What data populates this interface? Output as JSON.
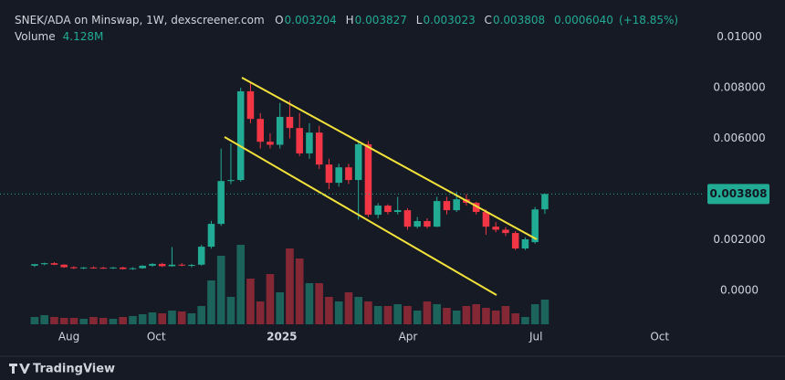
{
  "chart_data": {
    "type": "candlestick",
    "title": "SNEK/ADA on Minswap, 1W, dexscreener.com",
    "ohlc_keys": [
      "O",
      "H",
      "L",
      "C"
    ],
    "change": {
      "value": 0.000604,
      "label": "0.0006040"
    },
    "change_percent": {
      "value": 18.85,
      "label": "(+18.85%)"
    },
    "volume_name": "Volume",
    "volume_last_label": "4.128M",
    "watermark": "TradingView",
    "up_color": "#22ab94",
    "down_color": "#f23645",
    "x": [
      0,
      1,
      2,
      3,
      4,
      5,
      6,
      7,
      8,
      9,
      10,
      11,
      12,
      13,
      14,
      15,
      16,
      17,
      18,
      19,
      20,
      21,
      22,
      23,
      24,
      25,
      26,
      27,
      28,
      29,
      30,
      31,
      32,
      33,
      34,
      35,
      36,
      37,
      38,
      39,
      40,
      41,
      42,
      43,
      44,
      45,
      46,
      47,
      48,
      49,
      50,
      51,
      52
    ],
    "open": [
      0.00098,
      0.00104,
      0.00108,
      0.00102,
      0.00092,
      0.00088,
      0.00091,
      0.0009,
      0.00089,
      0.00091,
      0.00085,
      0.00088,
      0.00098,
      0.00105,
      0.00096,
      0.00102,
      0.00099,
      0.00102,
      0.00173,
      0.00263,
      0.00432,
      0.00436,
      0.00786,
      0.00677,
      0.00587,
      0.00575,
      0.00685,
      0.00641,
      0.00541,
      0.00623,
      0.00497,
      0.00425,
      0.00486,
      0.00436,
      0.00577,
      0.00299,
      0.00335,
      0.0031,
      0.00317,
      0.00252,
      0.00274,
      0.00252,
      0.00353,
      0.00317,
      0.0036,
      0.00346,
      0.0031,
      0.00252,
      0.0024,
      0.00227,
      0.00166,
      0.00191,
      0.003204
    ],
    "high": [
      0.00105,
      0.0011,
      0.00112,
      0.00104,
      0.00096,
      0.00093,
      0.00095,
      0.00094,
      0.00093,
      0.00094,
      0.00092,
      0.001,
      0.00108,
      0.0011,
      0.00172,
      0.00108,
      0.00105,
      0.0018,
      0.00275,
      0.0056,
      0.0058,
      0.008,
      0.0082,
      0.007,
      0.0062,
      0.0074,
      0.0075,
      0.007,
      0.0066,
      0.0065,
      0.0052,
      0.005,
      0.005,
      0.0059,
      0.0059,
      0.00345,
      0.0034,
      0.0037,
      0.00325,
      0.0029,
      0.00285,
      0.0037,
      0.0037,
      0.0039,
      0.0038,
      0.0035,
      0.0032,
      0.0027,
      0.0025,
      0.00235,
      0.0021,
      0.0033,
      0.003827
    ],
    "low": [
      0.00093,
      0.001,
      0.001,
      0.0009,
      0.00085,
      0.00084,
      0.00086,
      0.00086,
      0.00085,
      0.00083,
      0.00082,
      0.00086,
      0.00094,
      0.00093,
      0.00094,
      0.00096,
      0.00092,
      0.00098,
      0.00165,
      0.00255,
      0.0042,
      0.0043,
      0.0066,
      0.0056,
      0.0056,
      0.0056,
      0.006,
      0.0053,
      0.0052,
      0.0048,
      0.004,
      0.0041,
      0.0042,
      0.0028,
      0.0029,
      0.00285,
      0.003,
      0.003,
      0.0024,
      0.00245,
      0.00245,
      0.0025,
      0.003,
      0.0031,
      0.00335,
      0.003,
      0.0022,
      0.0023,
      0.00215,
      0.0016,
      0.0016,
      0.00185,
      0.003023
    ],
    "close": [
      0.00104,
      0.00108,
      0.00102,
      0.00092,
      0.00088,
      0.00091,
      0.0009,
      0.00089,
      0.00091,
      0.00085,
      0.00088,
      0.00098,
      0.00105,
      0.00096,
      0.00102,
      0.00099,
      0.00101,
      0.00173,
      0.00263,
      0.00432,
      0.00436,
      0.00786,
      0.00677,
      0.00587,
      0.00575,
      0.00685,
      0.00641,
      0.00541,
      0.00623,
      0.00497,
      0.00425,
      0.00486,
      0.00436,
      0.00577,
      0.00299,
      0.00335,
      0.0031,
      0.00317,
      0.00252,
      0.00274,
      0.00252,
      0.00353,
      0.00317,
      0.0036,
      0.00346,
      0.0031,
      0.00252,
      0.0024,
      0.00227,
      0.00166,
      0.00202,
      0.0032,
      0.003808
    ],
    "volume": [
      1223000,
      1529000,
      1223000,
      1070000,
      1070000,
      917000,
      1223000,
      1070000,
      917000,
      1223000,
      1376000,
      1682000,
      1988000,
      1835000,
      2294000,
      2141000,
      1835000,
      3058000,
      7339000,
      11468000,
      4587000,
      13302000,
      7645000,
      3823000,
      8410000,
      5352000,
      12691000,
      11009000,
      6881000,
      6881000,
      4587000,
      3823000,
      5352000,
      4587000,
      3823000,
      3058000,
      3058000,
      3364000,
      3058000,
      2294000,
      3823000,
      3364000,
      2752000,
      2294000,
      3058000,
      3364000,
      2752000,
      2294000,
      3058000,
      1835000,
      1223000,
      3364000,
      4128000
    ],
    "xlim": [
      -3.53,
      68.1
    ],
    "xticks": [
      {
        "value": 3.5,
        "label": "Aug"
      },
      {
        "value": 12.4,
        "label": "Oct"
      },
      {
        "value": 25.2,
        "label": "2025"
      },
      {
        "value": 38.05,
        "label": "Apr"
      },
      {
        "value": 51.1,
        "label": "Jul"
      },
      {
        "value": 63.7,
        "label": "Oct"
      }
    ],
    "ylim": [
      -0.00133,
      0.01146
    ],
    "yticks": [
      {
        "value": 0,
        "label": "0.0000"
      },
      {
        "value": 0.002,
        "label": "0.002000"
      },
      {
        "value": 0.006,
        "label": "0.006000"
      },
      {
        "value": 0.008,
        "label": "0.008000"
      },
      {
        "value": 0.01,
        "label": "0.01000"
      }
    ],
    "grid": false
  }
}
